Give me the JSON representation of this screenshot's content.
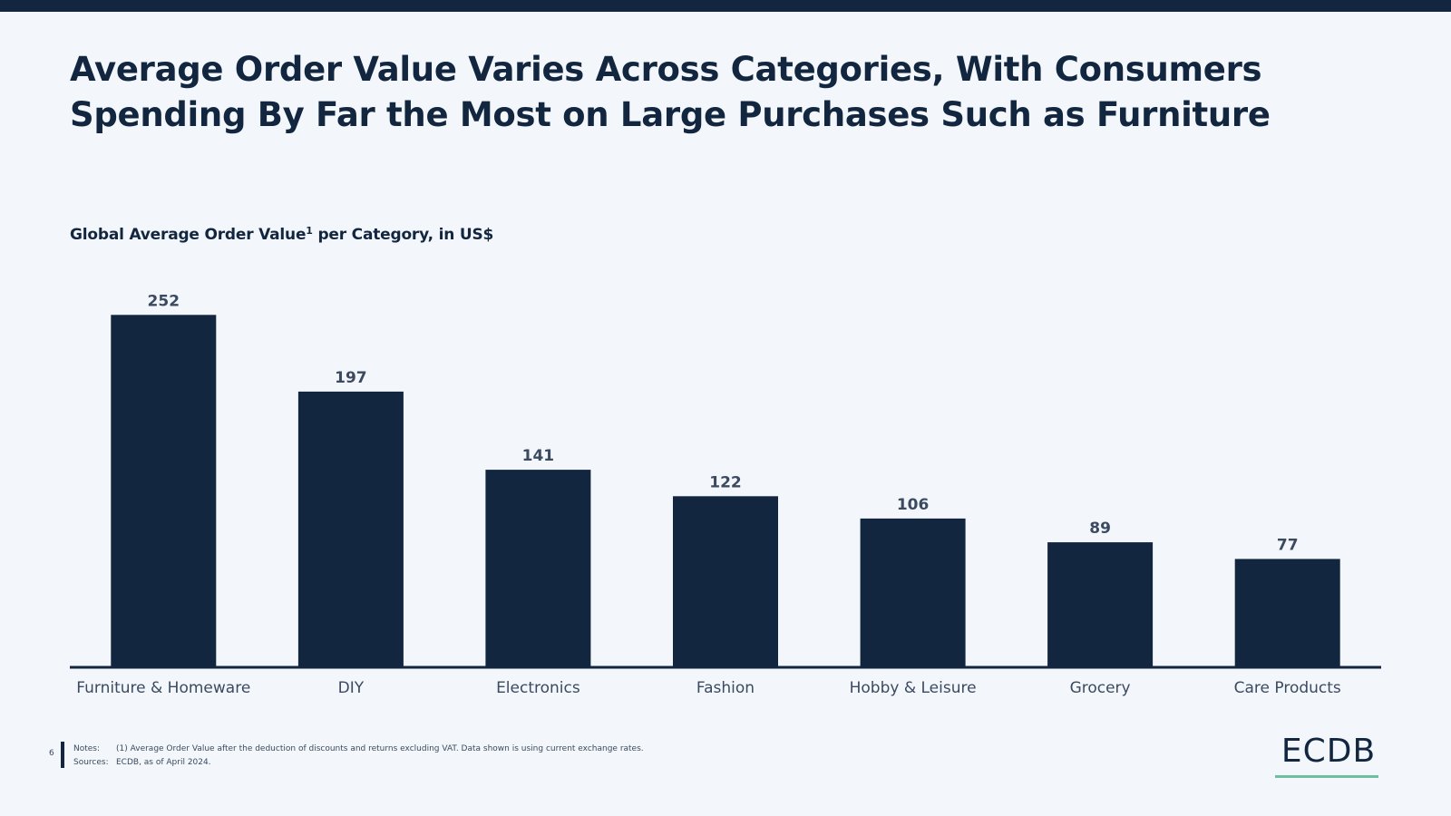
{
  "header": {
    "title": "Average Order Value Varies Across Categories, With Consumers Spending By Far the Most on Large Purchases Such as Furniture"
  },
  "chart_data": {
    "type": "bar",
    "title": "Global Average Order Value",
    "title_sup": "1",
    "title_suffix": " per Category, in US$",
    "categories": [
      "Furniture & Homeware",
      "DIY",
      "Electronics",
      "Fashion",
      "Hobby & Leisure",
      "Grocery",
      "Care Products"
    ],
    "values": [
      252,
      197,
      141,
      122,
      106,
      89,
      77
    ],
    "ylim": [
      0,
      260
    ],
    "grid": false,
    "legend": "none",
    "bar_color": "#12263f"
  },
  "footer": {
    "page_number": "6",
    "notes_label": "Notes:",
    "notes_text": "(1) Average Order Value after the deduction of discounts and returns excluding VAT. Data shown is using current exchange rates.",
    "sources_label": "Sources:",
    "sources_text": "ECDB, as of April 2024."
  },
  "logo": {
    "text": "ECDB",
    "accent_color": "#6fbf9e"
  }
}
